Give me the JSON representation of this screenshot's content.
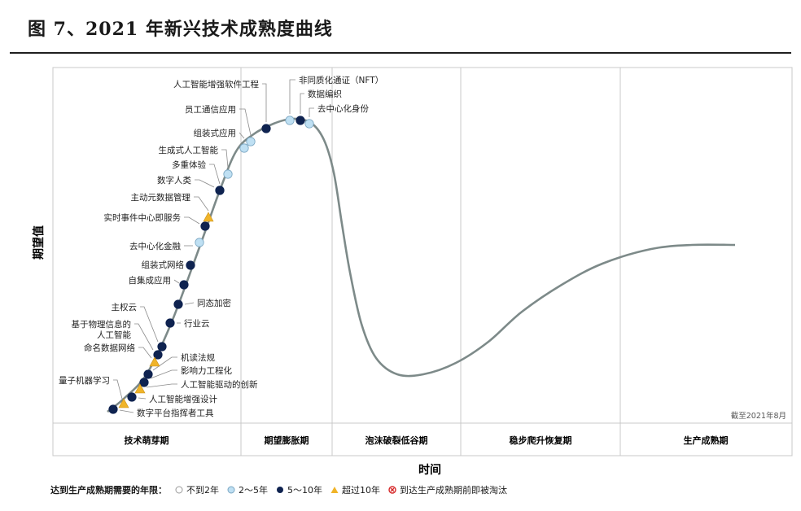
{
  "figure_title": "图 7、2021 年新兴技术成熟度曲线",
  "chart_data": {
    "type": "hype-cycle",
    "ylabel": "期望值",
    "xlabel": "时间",
    "note": "截至2021年8月",
    "phases": [
      "技术萌芽期",
      "期望膨胀期",
      "泡沫破裂低谷期",
      "稳步爬升恢复期",
      "生产成熟期"
    ],
    "categories": [
      {
        "id": "lt2",
        "label": "不到2年",
        "color": "#ffffff"
      },
      {
        "id": "2to5",
        "label": "2～5年",
        "color": "#bfe0f3"
      },
      {
        "id": "5to10",
        "label": "5～10年",
        "color": "#0f2350"
      },
      {
        "id": "gt10",
        "label": "超过10年",
        "color": "#f0b429"
      },
      {
        "id": "obsolete",
        "label": "到达生产成熟期前即被淘汰",
        "color": "#d62728"
      }
    ],
    "technologies": [
      {
        "name": "人工智能增强软件工程",
        "cat": "5to10"
      },
      {
        "name": "非同质化通证（NFT）",
        "cat": "2to5"
      },
      {
        "name": "数据编织",
        "cat": "5to10"
      },
      {
        "name": "去中心化身份",
        "cat": "2to5"
      },
      {
        "name": "员工通信应用",
        "cat": "2to5"
      },
      {
        "name": "组装式应用",
        "cat": "2to5"
      },
      {
        "name": "生成式人工智能",
        "cat": "2to5"
      },
      {
        "name": "多重体验",
        "cat": "2to5"
      },
      {
        "name": "数字人类",
        "cat": "5to10"
      },
      {
        "name": "主动元数据管理",
        "cat": "gt10"
      },
      {
        "name": "实时事件中心即服务",
        "cat": "5to10"
      },
      {
        "name": "去中心化金融",
        "cat": "2to5"
      },
      {
        "name": "组装式网络",
        "cat": "5to10"
      },
      {
        "name": "自集成应用",
        "cat": "5to10"
      },
      {
        "name": "同态加密",
        "cat": "5to10"
      },
      {
        "name": "主权云",
        "cat": "5to10"
      },
      {
        "name": "行业云",
        "cat": "5to10"
      },
      {
        "name": "基于物理信息的人工智能",
        "cat": "5to10"
      },
      {
        "name": "命名数据网络",
        "cat": "gt10"
      },
      {
        "name": "机读法规",
        "cat": "5to10"
      },
      {
        "name": "影响力工程化",
        "cat": "5to10"
      },
      {
        "name": "人工智能驱动的创新",
        "cat": "gt10"
      },
      {
        "name": "量子机器学习",
        "cat": "gt10"
      },
      {
        "name": "人工智能增强设计",
        "cat": "5to10"
      },
      {
        "name": "数字平台指挥者工具",
        "cat": "5to10"
      }
    ]
  },
  "legend": {
    "heading": "达到生产成熟期需要的年限："
  }
}
